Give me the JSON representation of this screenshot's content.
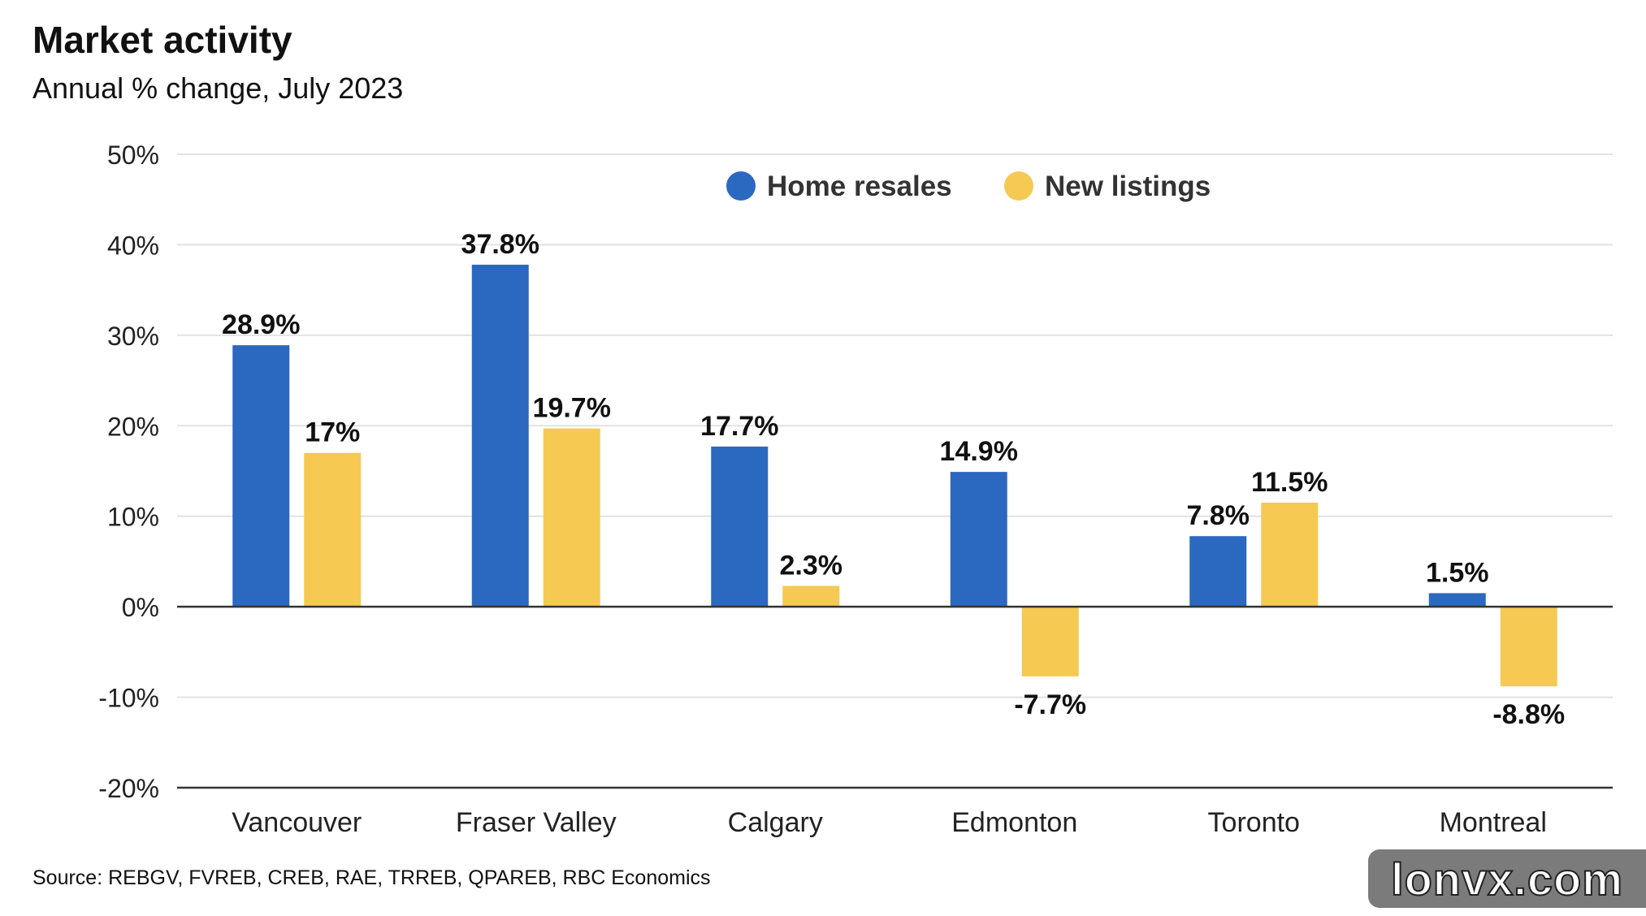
{
  "title": "Market activity",
  "subtitle": "Annual % change, July 2023",
  "source": "Source: REBGV, FVREB, CREB, RAE, TRREB, QPAREB, RBC Economics",
  "watermark": "lonvx.com",
  "colors": {
    "home_resales": "#2b68c0",
    "new_listings": "#f5c952",
    "grid": "#e2e2e2",
    "axis": "#333333"
  },
  "chart_data": {
    "type": "bar",
    "title": "Market activity",
    "subtitle": "Annual % change, July 2023",
    "categories": [
      "Vancouver",
      "Fraser Valley",
      "Calgary",
      "Edmonton",
      "Toronto",
      "Montreal"
    ],
    "series": [
      {
        "name": "Home resales",
        "values": [
          28.9,
          37.8,
          17.7,
          14.9,
          7.8,
          1.5
        ],
        "labels": [
          "28.9%",
          "37.8%",
          "17.7%",
          "14.9%",
          "7.8%",
          "1.5%"
        ]
      },
      {
        "name": "New listings",
        "values": [
          17,
          19.7,
          2.3,
          -7.7,
          11.5,
          -8.8
        ],
        "labels": [
          "17%",
          "19.7%",
          "2.3%",
          "-7.7%",
          "11.5%",
          "-8.8%"
        ]
      }
    ],
    "ylim": [
      -20,
      50
    ],
    "yticks": [
      50,
      40,
      30,
      20,
      10,
      0,
      -10,
      -20
    ],
    "ytick_labels": [
      "50%",
      "40%",
      "30%",
      "20%",
      "10%",
      "0%",
      "-10%",
      "-20%"
    ],
    "xlabel": "",
    "ylabel": "",
    "grid": true,
    "legend_position": "top-center"
  }
}
